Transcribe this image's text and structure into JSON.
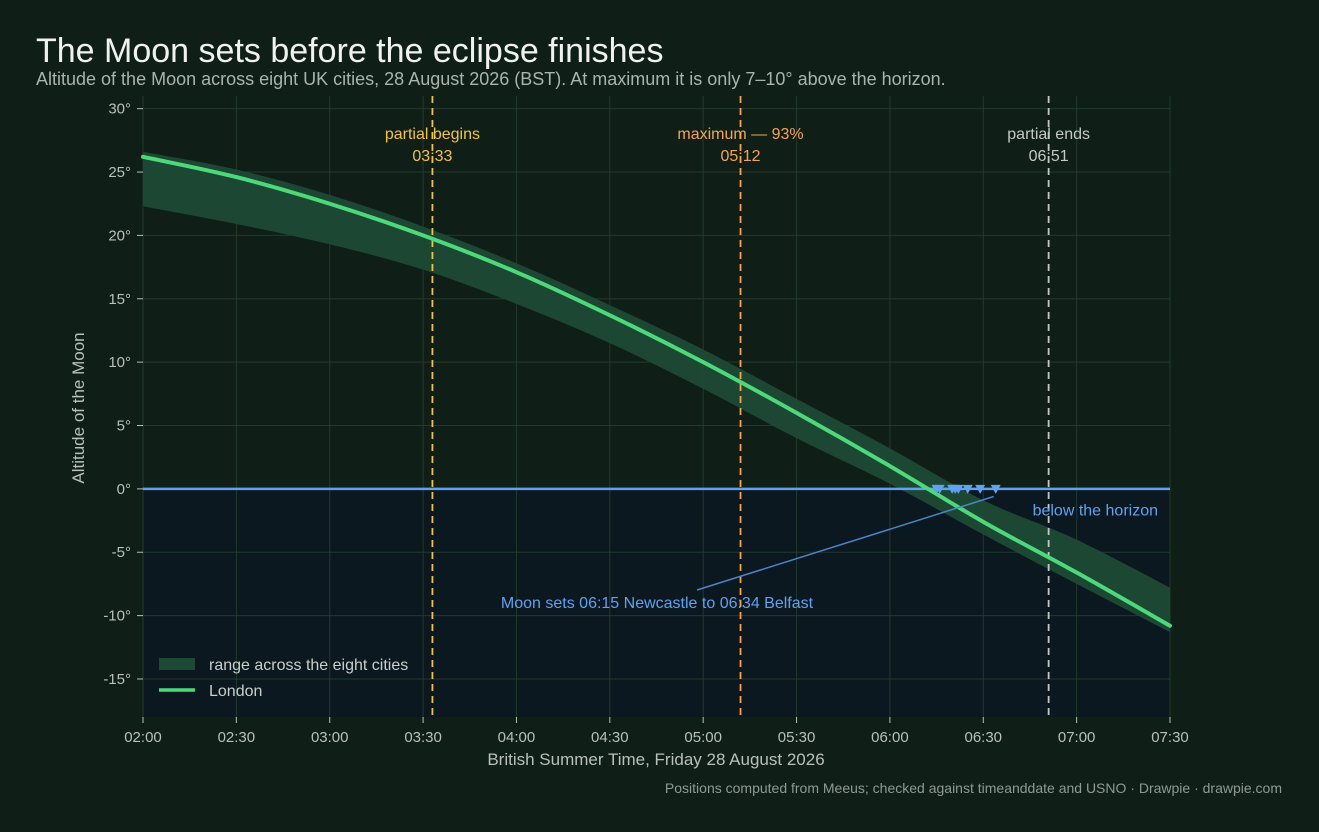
{
  "chart_data": {
    "type": "line",
    "title": "The Moon sets before the eclipse finishes",
    "subtitle": "Altitude of the Moon across eight UK cities, 28 August 2026 (BST). At maximum it is only 7–10° above the horizon.",
    "xlabel": "British Summer Time, Friday 28 August 2026",
    "ylabel": "Altitude of the Moon",
    "xlim": [
      "02:00",
      "07:30"
    ],
    "ylim": [
      -18,
      31
    ],
    "x_ticks": [
      "02:00",
      "02:30",
      "03:00",
      "03:30",
      "04:00",
      "04:30",
      "05:00",
      "05:30",
      "06:00",
      "06:30",
      "07:00",
      "07:30"
    ],
    "y_ticks": [
      -15,
      -10,
      -5,
      0,
      5,
      10,
      15,
      20,
      25,
      30
    ],
    "y_tick_labels": [
      "-15°",
      "-10°",
      "-5°",
      "0°",
      "5°",
      "10°",
      "15°",
      "20°",
      "25°",
      "30°"
    ],
    "grid": true,
    "legend_position": "bottom-left",
    "x": [
      "02:00",
      "02:30",
      "03:00",
      "03:30",
      "04:00",
      "04:30",
      "05:00",
      "05:30",
      "06:00",
      "06:30",
      "07:00",
      "07:30"
    ],
    "series": [
      {
        "name": "London",
        "type": "line",
        "color": "#4cd97a",
        "values": [
          26.2,
          24.6,
          22.5,
          20.0,
          17.1,
          13.7,
          10.0,
          6.0,
          1.8,
          -2.6,
          -6.6,
          -10.8
        ]
      },
      {
        "name": "range across the eight cities",
        "type": "band",
        "color": "#1d4a34",
        "lower": [
          22.3,
          20.9,
          19.3,
          17.3,
          14.6,
          11.5,
          7.9,
          4.0,
          0.4,
          -3.6,
          -7.5,
          -11.3
        ],
        "upper": [
          26.6,
          25.2,
          23.2,
          20.7,
          17.8,
          14.5,
          11.0,
          7.1,
          3.2,
          -0.9,
          -4.0,
          -7.8
        ]
      }
    ],
    "events": [
      {
        "label": "partial begins",
        "time": "03:33",
        "x": "03:33",
        "color": "#f2c33c"
      },
      {
        "label": "maximum — 93%",
        "time": "05:12",
        "x": "05:12",
        "color": "#f5a64d"
      },
      {
        "label": "partial ends",
        "time": "06:51",
        "x": "06:51",
        "color": "#c3c9c4"
      }
    ],
    "horizon": {
      "y": 0,
      "color": "#5fa2f0",
      "label": "below the horizon"
    },
    "moonsets": {
      "times": [
        "06:15",
        "06:16",
        "06:20",
        "06:21",
        "06:22",
        "06:25",
        "06:29",
        "06:34"
      ],
      "annotation": "Moon sets 06:15 Newcastle to 06:34 Belfast"
    }
  },
  "footer": {
    "text": "Positions computed from Meeus; checked against timeanddate and USNO  ·  Drawpie · drawpie.com"
  }
}
